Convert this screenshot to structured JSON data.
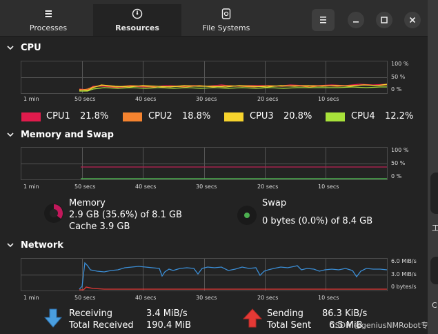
{
  "tabs": [
    {
      "label": "Processes",
      "icon": "list-icon"
    },
    {
      "label": "Resources",
      "icon": "gauge-icon"
    },
    {
      "label": "File Systems",
      "icon": "disk-icon"
    }
  ],
  "active_tab": "Resources",
  "window_controls": {
    "menu": "menu-icon",
    "minimize": "minimize-icon",
    "maximize": "maximize-icon",
    "close": "close-icon"
  },
  "cpu": {
    "title": "CPU",
    "y_ticks": [
      "100 %",
      "50 %",
      "0 %"
    ],
    "x_ticks": [
      "1 min",
      "50 secs",
      "40 secs",
      "30 secs",
      "20 secs",
      "10 secs"
    ],
    "legend": [
      {
        "name": "CPU1",
        "value": "21.8%",
        "color": "#e01b4c"
      },
      {
        "name": "CPU2",
        "value": "18.8%",
        "color": "#f5832f"
      },
      {
        "name": "CPU3",
        "value": "20.8%",
        "color": "#f6d32d"
      },
      {
        "name": "CPU4",
        "value": "12.2%",
        "color": "#a8e23a"
      }
    ]
  },
  "memory": {
    "title": "Memory and Swap",
    "y_ticks": [
      "100 %",
      "50 %",
      "0 %"
    ],
    "x_ticks": [
      "1 min",
      "50 secs",
      "40 secs",
      "30 secs",
      "20 secs",
      "10 secs"
    ],
    "memory_label": "Memory",
    "memory_usage": "2.9 GB (35.6%) of 8.1 GB",
    "cache": "Cache 3.9 GB",
    "memory_color": "#c2185b",
    "memory_fraction": 0.356,
    "swap_label": "Swap",
    "swap_usage": "0 bytes (0.0%) of 8.4 GB",
    "swap_color": "#4caf50",
    "swap_fraction": 0.0
  },
  "network": {
    "title": "Network",
    "y_ticks": [
      "6.0 MiB/s",
      "3.0 MiB/s",
      "0 bytes/s"
    ],
    "x_ticks": [
      "1 min",
      "50 secs",
      "40 secs",
      "30 secs",
      "20 secs",
      "10 secs"
    ],
    "receiving_label": "Receiving",
    "receiving_value": "3.4 MiB/s",
    "total_received_label": "Total Received",
    "total_received_value": "190.4 MiB",
    "sending_label": "Sending",
    "sending_value": "86.3 KiB/s",
    "total_sent_label": "Total Sent",
    "total_sent_value": "6.5 MiB",
    "receive_color": "#3b8ed6",
    "send_color": "#e53935"
  },
  "watermark": "CSDN @geniusNMRobot专家",
  "right_strip_glyphs": [
    "工",
    "C"
  ]
}
